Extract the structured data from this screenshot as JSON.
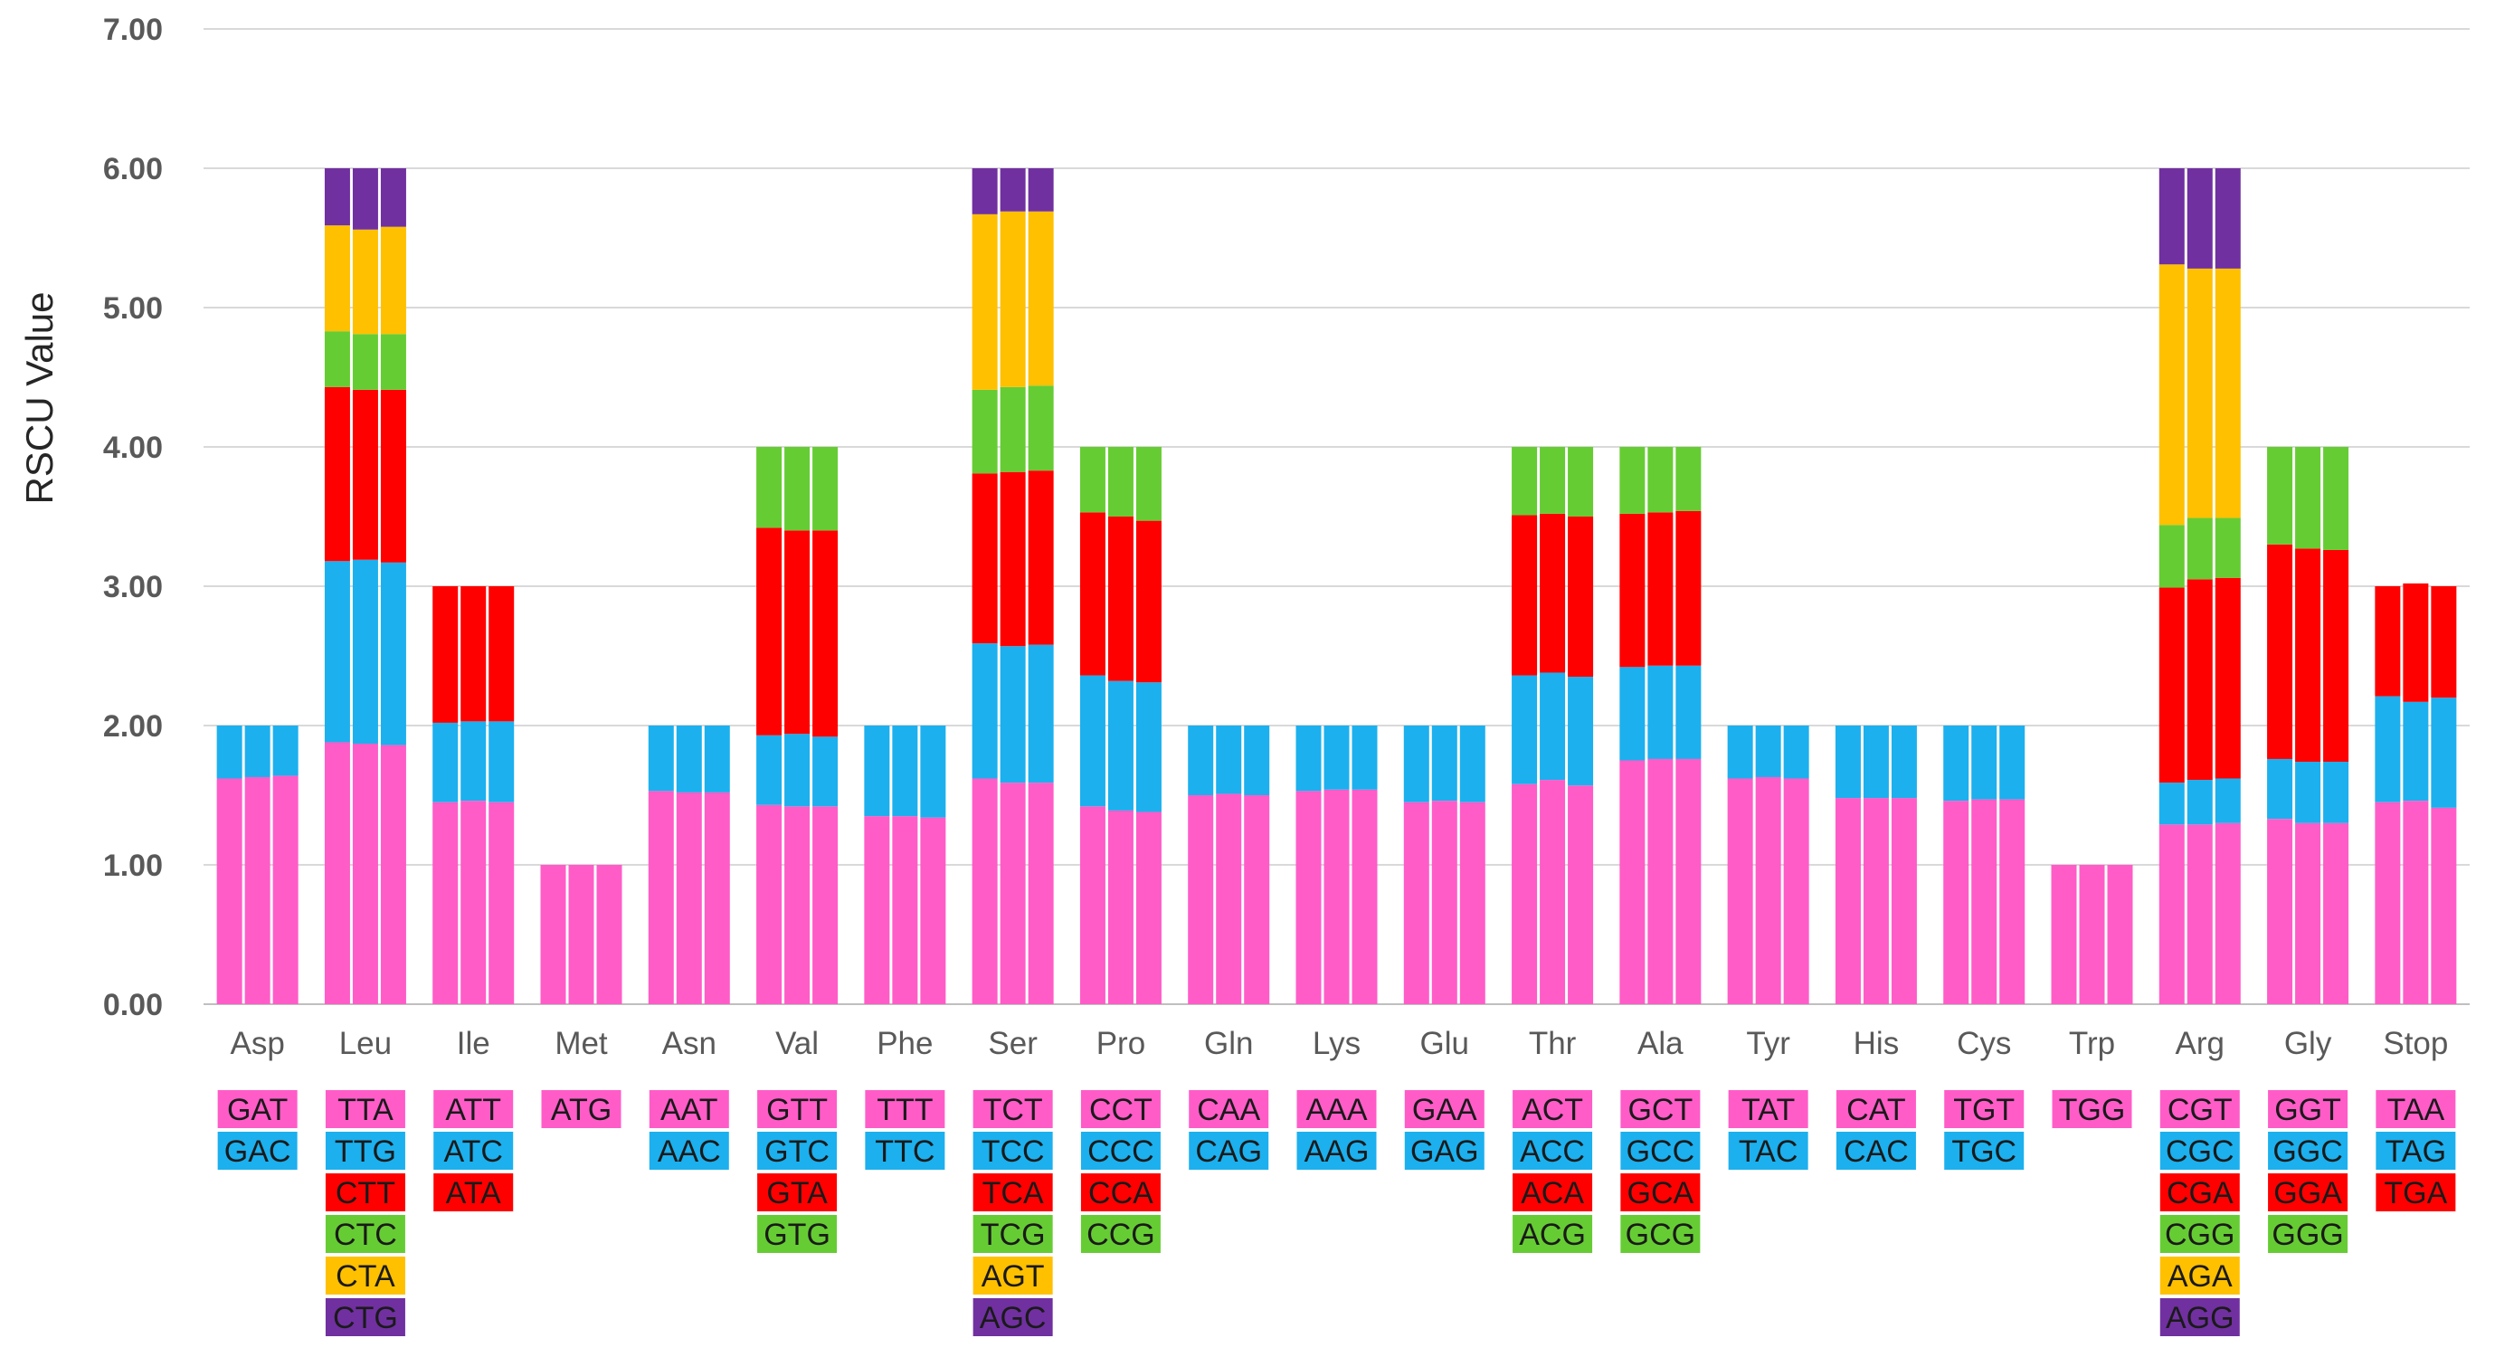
{
  "chart_data": {
    "type": "bar",
    "subtype": "stacked",
    "title": "",
    "xlabel": "",
    "ylabel": "RSCU Value",
    "ylim": [
      0,
      7
    ],
    "yticks": [
      "0.00",
      "1.00",
      "2.00",
      "3.00",
      "4.00",
      "5.00",
      "6.00",
      "7.00"
    ],
    "grid": "horizontal",
    "layer_colors": [
      "#ff5cc8",
      "#1cb0ee",
      "#ff0000",
      "#66cc33",
      "#ffc000",
      "#7030a0"
    ],
    "categories": [
      {
        "name": "Asp",
        "codons": [
          "GAT",
          "GAC"
        ],
        "bars": [
          [
            1.62,
            0.38
          ],
          [
            1.63,
            0.37
          ],
          [
            1.64,
            0.36
          ]
        ]
      },
      {
        "name": "Leu",
        "codons": [
          "TTA",
          "TTG",
          "CTT",
          "CTC",
          "CTA",
          "CTG"
        ],
        "bars": [
          [
            1.88,
            1.3,
            1.25,
            0.4,
            0.76,
            0.41
          ],
          [
            1.87,
            1.32,
            1.22,
            0.4,
            0.75,
            0.44
          ],
          [
            1.86,
            1.31,
            1.24,
            0.4,
            0.77,
            0.42
          ]
        ]
      },
      {
        "name": "Ile",
        "codons": [
          "ATT",
          "ATC",
          "ATA"
        ],
        "bars": [
          [
            1.45,
            0.57,
            0.98
          ],
          [
            1.46,
            0.57,
            0.97
          ],
          [
            1.45,
            0.58,
            0.97
          ]
        ]
      },
      {
        "name": "Met",
        "codons": [
          "ATG"
        ],
        "bars": [
          [
            1.0
          ],
          [
            1.0
          ],
          [
            1.0
          ]
        ]
      },
      {
        "name": "Asn",
        "codons": [
          "AAT",
          "AAC"
        ],
        "bars": [
          [
            1.53,
            0.47
          ],
          [
            1.52,
            0.48
          ],
          [
            1.52,
            0.48
          ]
        ]
      },
      {
        "name": "Val",
        "codons": [
          "GTT",
          "GTC",
          "GTA",
          "GTG"
        ],
        "bars": [
          [
            1.43,
            0.5,
            1.49,
            0.58
          ],
          [
            1.42,
            0.52,
            1.46,
            0.6
          ],
          [
            1.42,
            0.5,
            1.48,
            0.6
          ]
        ]
      },
      {
        "name": "Phe",
        "codons": [
          "TTT",
          "TTC"
        ],
        "bars": [
          [
            1.35,
            0.65
          ],
          [
            1.35,
            0.65
          ],
          [
            1.34,
            0.66
          ]
        ]
      },
      {
        "name": "Ser",
        "codons": [
          "TCT",
          "TCC",
          "TCA",
          "TCG",
          "AGT",
          "AGC"
        ],
        "bars": [
          [
            1.62,
            0.97,
            1.22,
            0.6,
            1.26,
            0.33
          ],
          [
            1.59,
            0.98,
            1.25,
            0.61,
            1.26,
            0.31
          ],
          [
            1.59,
            0.99,
            1.25,
            0.61,
            1.25,
            0.31
          ]
        ]
      },
      {
        "name": "Pro",
        "codons": [
          "CCT",
          "CCC",
          "CCA",
          "CCG"
        ],
        "bars": [
          [
            1.42,
            0.94,
            1.17,
            0.47
          ],
          [
            1.39,
            0.93,
            1.18,
            0.5
          ],
          [
            1.38,
            0.93,
            1.16,
            0.53
          ]
        ]
      },
      {
        "name": "Gln",
        "codons": [
          "CAA",
          "CAG"
        ],
        "bars": [
          [
            1.5,
            0.5
          ],
          [
            1.51,
            0.49
          ],
          [
            1.5,
            0.5
          ]
        ]
      },
      {
        "name": "Lys",
        "codons": [
          "AAA",
          "AAG"
        ],
        "bars": [
          [
            1.53,
            0.47
          ],
          [
            1.54,
            0.46
          ],
          [
            1.54,
            0.46
          ]
        ]
      },
      {
        "name": "Glu",
        "codons": [
          "GAA",
          "GAG"
        ],
        "bars": [
          [
            1.45,
            0.55
          ],
          [
            1.46,
            0.54
          ],
          [
            1.45,
            0.55
          ]
        ]
      },
      {
        "name": "Thr",
        "codons": [
          "ACT",
          "ACC",
          "ACA",
          "ACG"
        ],
        "bars": [
          [
            1.58,
            0.78,
            1.15,
            0.49
          ],
          [
            1.61,
            0.77,
            1.14,
            0.48
          ],
          [
            1.57,
            0.78,
            1.15,
            0.5
          ]
        ]
      },
      {
        "name": "Ala",
        "codons": [
          "GCT",
          "GCC",
          "GCA",
          "GCG"
        ],
        "bars": [
          [
            1.75,
            0.67,
            1.1,
            0.48
          ],
          [
            1.76,
            0.67,
            1.1,
            0.47
          ],
          [
            1.76,
            0.67,
            1.11,
            0.46
          ]
        ]
      },
      {
        "name": "Tyr",
        "codons": [
          "TAT",
          "TAC"
        ],
        "bars": [
          [
            1.62,
            0.38
          ],
          [
            1.63,
            0.37
          ],
          [
            1.62,
            0.38
          ]
        ]
      },
      {
        "name": "His",
        "codons": [
          "CAT",
          "CAC"
        ],
        "bars": [
          [
            1.48,
            0.52
          ],
          [
            1.48,
            0.52
          ],
          [
            1.48,
            0.52
          ]
        ]
      },
      {
        "name": "Cys",
        "codons": [
          "TGT",
          "TGC"
        ],
        "bars": [
          [
            1.46,
            0.54
          ],
          [
            1.47,
            0.53
          ],
          [
            1.47,
            0.53
          ]
        ]
      },
      {
        "name": "Trp",
        "codons": [
          "TGG"
        ],
        "bars": [
          [
            1.0
          ],
          [
            1.0
          ],
          [
            1.0
          ]
        ]
      },
      {
        "name": "Arg",
        "codons": [
          "CGT",
          "CGC",
          "CGA",
          "CGG",
          "AGA",
          "AGG"
        ],
        "bars": [
          [
            1.29,
            0.3,
            1.4,
            0.45,
            1.87,
            0.69
          ],
          [
            1.29,
            0.32,
            1.44,
            0.44,
            1.79,
            0.72
          ],
          [
            1.3,
            0.32,
            1.44,
            0.43,
            1.79,
            0.72
          ]
        ]
      },
      {
        "name": "Gly",
        "codons": [
          "GGT",
          "GGC",
          "GGA",
          "GGG"
        ],
        "bars": [
          [
            1.33,
            0.43,
            1.54,
            0.7
          ],
          [
            1.3,
            0.44,
            1.53,
            0.73
          ],
          [
            1.3,
            0.44,
            1.52,
            0.74
          ]
        ]
      },
      {
        "name": "Stop",
        "codons": [
          "TAA",
          "TAG",
          "TGA"
        ],
        "bars": [
          [
            1.45,
            0.76,
            0.79
          ],
          [
            1.46,
            0.71,
            0.85
          ],
          [
            1.41,
            0.79,
            0.8
          ]
        ]
      }
    ]
  }
}
